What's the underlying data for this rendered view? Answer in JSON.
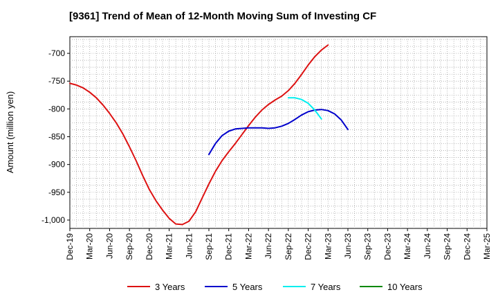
{
  "chart_data": {
    "type": "line",
    "title": "[9361]  Trend of Mean of 12-Month Moving Sum of Investing CF",
    "xlabel": "",
    "ylabel": "Amount (million yen)",
    "ylim": [
      -1015,
      -670
    ],
    "y_ticks": [
      -700,
      -750,
      -800,
      -850,
      -900,
      -950,
      -1000
    ],
    "y_tick_labels": [
      "-700",
      "-750",
      "-800",
      "-850",
      "-900",
      "-950",
      "-1,000"
    ],
    "x_categories": [
      "Dec-19",
      "Mar-20",
      "Jun-20",
      "Sep-20",
      "Dec-20",
      "Mar-21",
      "Jun-21",
      "Sep-21",
      "Dec-21",
      "Mar-22",
      "Jun-22",
      "Sep-22",
      "Dec-22",
      "Mar-23",
      "Jun-23",
      "Sep-23",
      "Dec-23",
      "Mar-24",
      "Jun-24",
      "Sep-24",
      "Dec-24",
      "Mar-25"
    ],
    "grid": true,
    "legend_position": "bottom",
    "series": [
      {
        "name": "3 Years",
        "color": "#dd1111",
        "start_index": 0,
        "values": [
          -754,
          -757,
          -762,
          -770,
          -780,
          -793,
          -808,
          -825,
          -845,
          -868,
          -893,
          -920,
          -945,
          -965,
          -982,
          -997,
          -1007,
          -1008,
          -1002,
          -985,
          -960,
          -935,
          -912,
          -893,
          -877,
          -862,
          -846,
          -830,
          -815,
          -802,
          -792,
          -784,
          -777,
          -767,
          -754,
          -738,
          -721,
          -706,
          -694,
          -685
        ]
      },
      {
        "name": "5 Years",
        "color": "#0000cc",
        "start_index": 21,
        "values": [
          -882,
          -862,
          -848,
          -840,
          -836,
          -835,
          -834,
          -834,
          -834,
          -835,
          -834,
          -831,
          -826,
          -819,
          -811,
          -805,
          -802,
          -801,
          -803,
          -809,
          -820,
          -837
        ]
      },
      {
        "name": "7 Years",
        "color": "#00eeee",
        "start_index": 33,
        "values": [
          -780,
          -780,
          -783,
          -790,
          -802,
          -818
        ]
      },
      {
        "name": "10 Years",
        "color": "#008800",
        "start_index": 0,
        "values": []
      }
    ]
  }
}
